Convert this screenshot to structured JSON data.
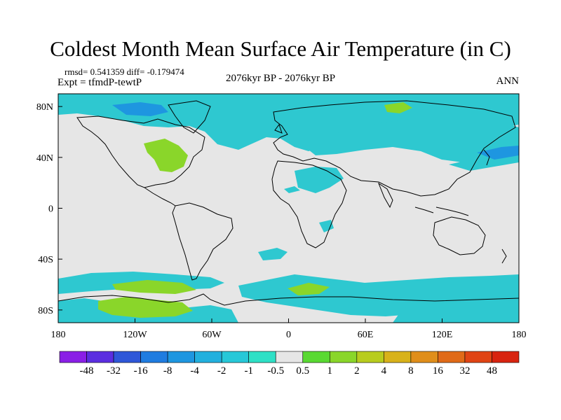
{
  "title": "Coldest Month Mean Surface Air Temperature (in C)",
  "stats_line": "rmsd= 0.541359  diff= -0.179474",
  "expt_line": "Expt = tfmdP-tewtP",
  "period": "2076kyr BP - 2076kyr BP",
  "season": "ANN",
  "lat_labels": [
    "80N",
    "40N",
    "0",
    "40S",
    "80S"
  ],
  "lon_labels": [
    "180",
    "120W",
    "60W",
    "0",
    "60E",
    "120E",
    "180"
  ],
  "colorbar": {
    "labels": [
      "-48",
      "-32",
      "-16",
      "-8",
      "-4",
      "-2",
      "-1",
      "-0.5",
      "0.5",
      "1",
      "2",
      "4",
      "8",
      "16",
      "32",
      "48"
    ],
    "colors": [
      "#8a1fe6",
      "#5b2ee0",
      "#2f57d8",
      "#1f7ce0",
      "#1e96e0",
      "#22b0de",
      "#27c8d8",
      "#2ee0c6",
      "#e6e6e6",
      "#59d932",
      "#8ad62a",
      "#b8cc1e",
      "#d8b21a",
      "#e08e1a",
      "#e06a18",
      "#e04414",
      "#d82410"
    ]
  },
  "colors": {
    "ocean_land_background": "#e6e6e6",
    "anomaly_cool": "#2ec8d0",
    "anomaly_cool_strong": "#1e96e0",
    "anomaly_warm": "#8ad62a",
    "coastline": "#000000"
  }
}
